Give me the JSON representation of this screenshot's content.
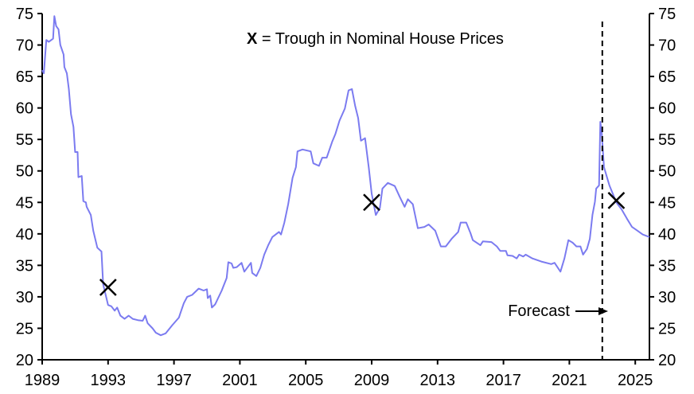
{
  "chart_data": {
    "type": "line",
    "title": "",
    "xlabel": "",
    "ylabel": "",
    "xlim": [
      1989,
      2025.86
    ],
    "ylim": [
      20,
      75
    ],
    "x_ticks": [
      "1989",
      "1993",
      "1997",
      "2001",
      "2005",
      "2009",
      "2013",
      "2017",
      "2021",
      "2025"
    ],
    "y_ticks": [
      "20",
      "25",
      "30",
      "35",
      "40",
      "45",
      "50",
      "55",
      "60",
      "65",
      "70",
      "75"
    ],
    "grid": false,
    "line_color": "#7b7bf0",
    "legend": {
      "marker": "X",
      "text": " = Trough in Nominal House Prices",
      "placement": "top-right"
    },
    "forecast": {
      "label": "Forecast",
      "x": 2023.0
    },
    "troughs": [
      {
        "x": 1993.0,
        "y": 31.5
      },
      {
        "x": 2009.0,
        "y": 45.0
      },
      {
        "x": 2023.85,
        "y": 45.3
      }
    ],
    "series": [
      {
        "name": "series",
        "points": [
          [
            1989.0,
            66
          ],
          [
            1989.1,
            65.5
          ],
          [
            1989.25,
            70.8
          ],
          [
            1989.4,
            70.5
          ],
          [
            1989.66,
            71
          ],
          [
            1989.74,
            74.6
          ],
          [
            1989.85,
            73
          ],
          [
            1989.99,
            72.5
          ],
          [
            1990.1,
            70
          ],
          [
            1990.3,
            68.5
          ],
          [
            1990.35,
            66.5
          ],
          [
            1990.5,
            65.5
          ],
          [
            1990.62,
            63
          ],
          [
            1990.75,
            59
          ],
          [
            1990.9,
            57
          ],
          [
            1991.0,
            53
          ],
          [
            1991.15,
            53
          ],
          [
            1991.2,
            49
          ],
          [
            1991.4,
            49.2
          ],
          [
            1991.5,
            45.2
          ],
          [
            1991.65,
            45
          ],
          [
            1991.7,
            44.3
          ],
          [
            1991.95,
            43
          ],
          [
            1992.1,
            40.5
          ],
          [
            1992.35,
            37.8
          ],
          [
            1992.6,
            37.2
          ],
          [
            1992.7,
            32
          ],
          [
            1993.0,
            28.7
          ],
          [
            1993.2,
            28.5
          ],
          [
            1993.4,
            27.8
          ],
          [
            1993.55,
            28.3
          ],
          [
            1993.75,
            27
          ],
          [
            1994.0,
            26.5
          ],
          [
            1994.25,
            27
          ],
          [
            1994.5,
            26.5
          ],
          [
            1994.8,
            26.3
          ],
          [
            1995.1,
            26.2
          ],
          [
            1995.25,
            27
          ],
          [
            1995.4,
            25.8
          ],
          [
            1995.7,
            25
          ],
          [
            1995.9,
            24.3
          ],
          [
            1996.2,
            23.9
          ],
          [
            1996.5,
            24.2
          ],
          [
            1996.9,
            25.5
          ],
          [
            1997.3,
            26.7
          ],
          [
            1997.4,
            27.5
          ],
          [
            1997.6,
            29
          ],
          [
            1997.8,
            30
          ],
          [
            1998.1,
            30.3
          ],
          [
            1998.5,
            31.3
          ],
          [
            1998.8,
            31
          ],
          [
            1999.0,
            31.2
          ],
          [
            1999.05,
            29.8
          ],
          [
            1999.2,
            30.2
          ],
          [
            1999.3,
            28.3
          ],
          [
            1999.5,
            28.8
          ],
          [
            1999.9,
            31
          ],
          [
            2000.2,
            33
          ],
          [
            2000.3,
            35.5
          ],
          [
            2000.5,
            35.3
          ],
          [
            2000.6,
            34.6
          ],
          [
            2000.8,
            34.7
          ],
          [
            2001.1,
            35.4
          ],
          [
            2001.27,
            34.0
          ],
          [
            2001.67,
            35.4
          ],
          [
            2001.75,
            33.8
          ],
          [
            2002.0,
            33.3
          ],
          [
            2002.24,
            34.6
          ],
          [
            2002.48,
            36.7
          ],
          [
            2002.72,
            38.2
          ],
          [
            2002.97,
            39.5
          ],
          [
            2003.37,
            40.3
          ],
          [
            2003.5,
            39.9
          ],
          [
            2003.7,
            41.8
          ],
          [
            2003.93,
            44.7
          ],
          [
            2004.2,
            48.9
          ],
          [
            2004.4,
            50.6
          ],
          [
            2004.5,
            53.1
          ],
          [
            2004.8,
            53.4
          ],
          [
            2005.3,
            53.1
          ],
          [
            2005.46,
            51.2
          ],
          [
            2005.8,
            50.8
          ],
          [
            2006.0,
            52.1
          ],
          [
            2006.27,
            52.1
          ],
          [
            2006.6,
            54.6
          ],
          [
            2006.8,
            55.9
          ],
          [
            2007.05,
            58.0
          ],
          [
            2007.37,
            59.9
          ],
          [
            2007.6,
            62.8
          ],
          [
            2007.8,
            63.0
          ],
          [
            2008.0,
            60.3
          ],
          [
            2008.18,
            58.4
          ],
          [
            2008.35,
            54.8
          ],
          [
            2008.6,
            55.2
          ],
          [
            2008.82,
            50.6
          ],
          [
            2009.0,
            46.4
          ],
          [
            2009.25,
            43.0
          ],
          [
            2009.5,
            44.1
          ],
          [
            2009.65,
            47.2
          ],
          [
            2009.98,
            48.1
          ],
          [
            2010.4,
            47.6
          ],
          [
            2010.7,
            45.9
          ],
          [
            2011.0,
            44.3
          ],
          [
            2011.2,
            45.5
          ],
          [
            2011.5,
            44.7
          ],
          [
            2011.8,
            40.9
          ],
          [
            2012.2,
            41.1
          ],
          [
            2012.46,
            41.5
          ],
          [
            2012.86,
            40.5
          ],
          [
            2013.2,
            38.0
          ],
          [
            2013.5,
            38.0
          ],
          [
            2013.85,
            39.2
          ],
          [
            2014.25,
            40.3
          ],
          [
            2014.4,
            41.8
          ],
          [
            2014.74,
            41.8
          ],
          [
            2015.0,
            40.1
          ],
          [
            2015.14,
            39.0
          ],
          [
            2015.6,
            38.2
          ],
          [
            2015.75,
            38.8
          ],
          [
            2016.27,
            38.7
          ],
          [
            2016.6,
            38.0
          ],
          [
            2016.8,
            37.3
          ],
          [
            2017.15,
            37.3
          ],
          [
            2017.24,
            36.6
          ],
          [
            2017.55,
            36.5
          ],
          [
            2017.8,
            36.1
          ],
          [
            2017.95,
            36.7
          ],
          [
            2018.2,
            36.4
          ],
          [
            2018.35,
            36.7
          ],
          [
            2018.76,
            36.1
          ],
          [
            2019.3,
            35.6
          ],
          [
            2019.9,
            35.2
          ],
          [
            2020.1,
            35.4
          ],
          [
            2020.46,
            34.0
          ],
          [
            2020.7,
            36.1
          ],
          [
            2020.94,
            39.0
          ],
          [
            2021.2,
            38.6
          ],
          [
            2021.43,
            38.0
          ],
          [
            2021.67,
            38.0
          ],
          [
            2021.83,
            36.7
          ],
          [
            2022.07,
            37.6
          ],
          [
            2022.24,
            39.2
          ],
          [
            2022.4,
            43.0
          ],
          [
            2022.55,
            45.1
          ],
          [
            2022.63,
            47.2
          ],
          [
            2022.8,
            47.7
          ],
          [
            2022.88,
            57.8
          ],
          [
            2022.96,
            56.1
          ],
          [
            2023.1,
            50.6
          ],
          [
            2023.27,
            49.1
          ],
          [
            2023.43,
            47.7
          ],
          [
            2023.85,
            45.0
          ],
          [
            2024.17,
            43.9
          ],
          [
            2024.5,
            42.4
          ],
          [
            2024.8,
            41.1
          ],
          [
            2025.14,
            40.5
          ],
          [
            2025.45,
            39.9
          ],
          [
            2025.86,
            39.5
          ]
        ]
      }
    ]
  }
}
